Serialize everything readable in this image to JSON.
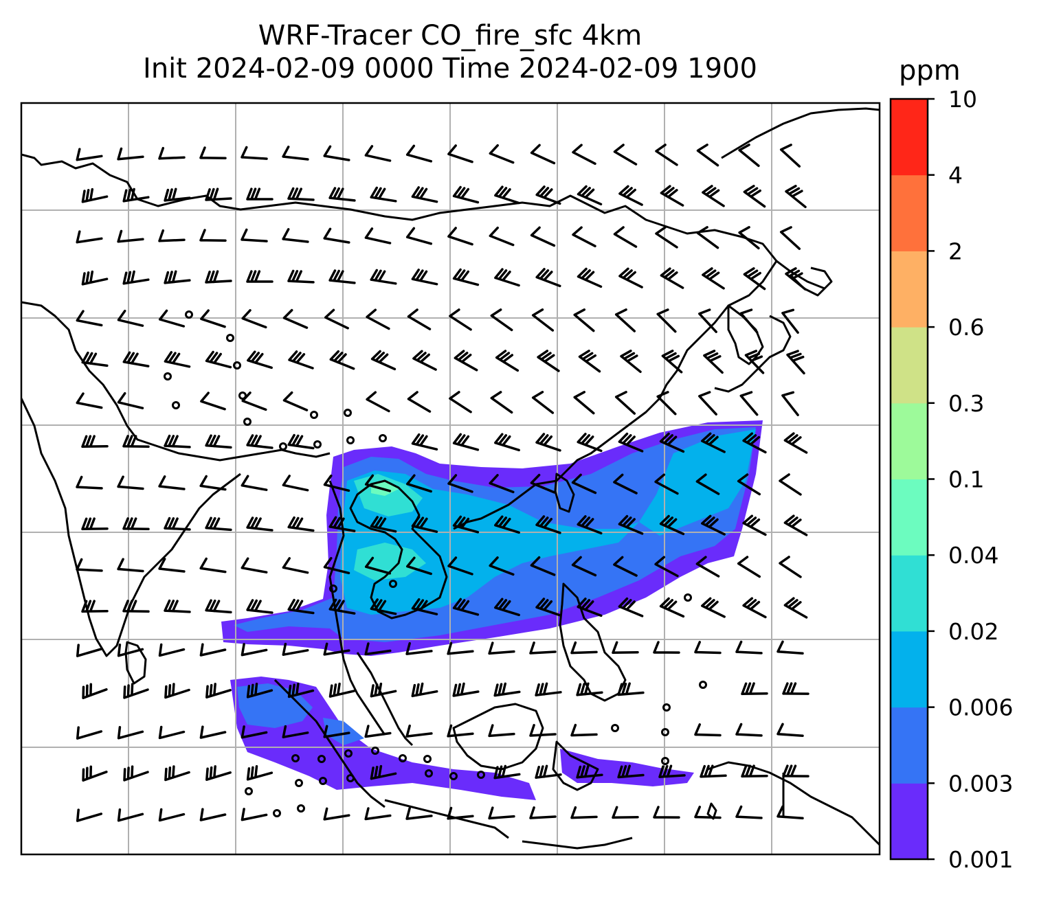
{
  "title": {
    "line1": "WRF-Tracer CO_fire_sfc 4km",
    "line2": "Init 2024-02-09 0000 Time 2024-02-09 1900"
  },
  "colorbar": {
    "unit": "ppm",
    "levels": [
      "0.001",
      "0.003",
      "0.006",
      "0.02",
      "0.04",
      "0.1",
      "0.3",
      "0.6",
      "2",
      "4",
      "10"
    ],
    "colors": [
      "#6a2cfb",
      "#3574f5",
      "#03b1ec",
      "#30dfd4",
      "#6cfcbf",
      "#9dfa9a",
      "#cfe287",
      "#feb064",
      "#ff713b",
      "#ff2618"
    ]
  },
  "map": {
    "coastline_color": "#000000",
    "grid_color": "#b0b0b0",
    "barb_color": "#000000"
  }
}
